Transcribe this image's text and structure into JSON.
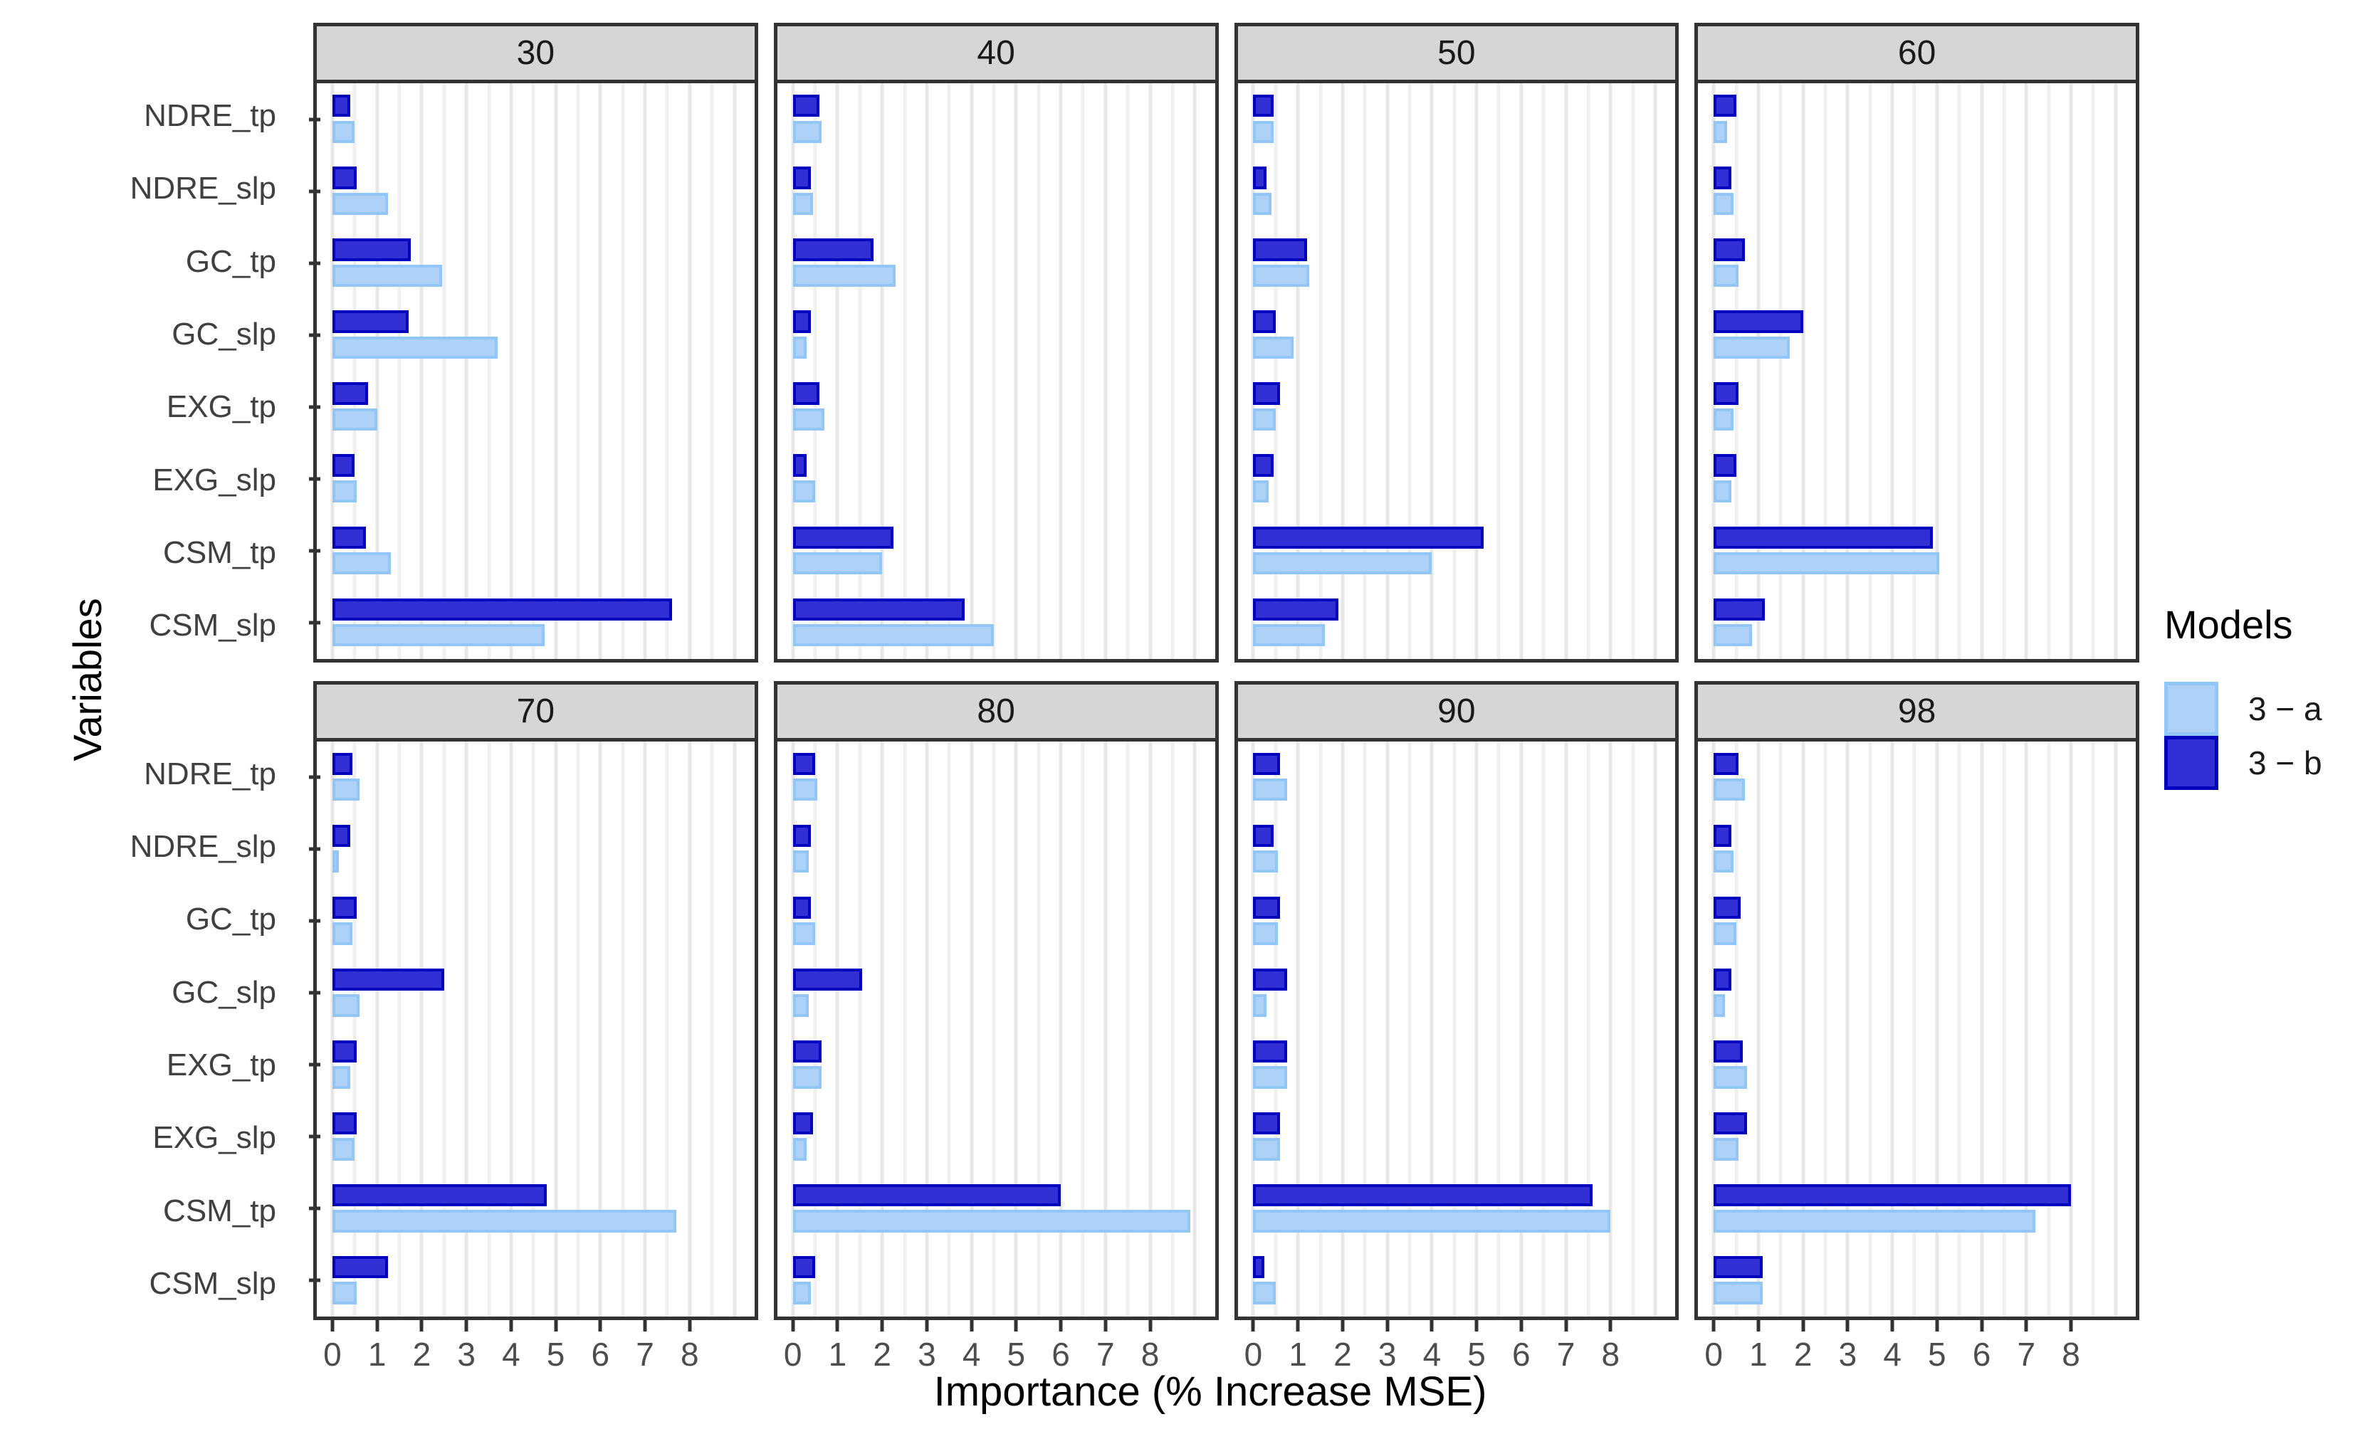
{
  "chart_data": {
    "type": "bar",
    "orientation": "horizontal",
    "title": "",
    "xlabel": "Importance (% Increase MSE)",
    "ylabel": "Variables",
    "categories": [
      "NDRE_tp",
      "NDRE_slp",
      "GC_tp",
      "GC_slp",
      "EXG_tp",
      "EXG_slp",
      "CSM_tp",
      "CSM_slp"
    ],
    "x_ticks": [
      "0",
      "1",
      "2",
      "3",
      "4",
      "5",
      "6",
      "7",
      "8"
    ],
    "xlim": [
      0,
      9.45
    ],
    "grid": "on",
    "legend_position": "right",
    "legend": {
      "title": "Models",
      "entries": [
        {
          "label": "3 − a",
          "fill": "#AED1F8",
          "stroke": "#92C6F6"
        },
        {
          "label": "3 − b",
          "fill": "#3230D4",
          "stroke": "#0202BE"
        }
      ]
    },
    "facets": [
      {
        "label": "30",
        "series": [
          {
            "name": "3 − a",
            "values": [
              0.5,
              1.25,
              2.45,
              3.7,
              1.0,
              0.55,
              1.3,
              4.75
            ]
          },
          {
            "name": "3 − b",
            "values": [
              0.4,
              0.55,
              1.75,
              1.7,
              0.8,
              0.5,
              0.75,
              7.6
            ]
          }
        ]
      },
      {
        "label": "40",
        "series": [
          {
            "name": "3 − a",
            "values": [
              0.65,
              0.45,
              2.3,
              0.3,
              0.7,
              0.5,
              2.0,
              4.5
            ]
          },
          {
            "name": "3 − b",
            "values": [
              0.6,
              0.4,
              1.8,
              0.4,
              0.6,
              0.3,
              2.25,
              3.85
            ]
          }
        ]
      },
      {
        "label": "50",
        "series": [
          {
            "name": "3 − a",
            "values": [
              0.45,
              0.4,
              1.25,
              0.9,
              0.5,
              0.35,
              4.0,
              1.6
            ]
          },
          {
            "name": "3 − b",
            "values": [
              0.45,
              0.3,
              1.2,
              0.5,
              0.6,
              0.45,
              5.15,
              1.9
            ]
          }
        ]
      },
      {
        "label": "60",
        "series": [
          {
            "name": "3 − a",
            "values": [
              0.3,
              0.45,
              0.55,
              1.7,
              0.45,
              0.4,
              5.05,
              0.85
            ]
          },
          {
            "name": "3 − b",
            "values": [
              0.5,
              0.4,
              0.7,
              2.0,
              0.55,
              0.5,
              4.9,
              1.15
            ]
          }
        ]
      },
      {
        "label": "70",
        "series": [
          {
            "name": "3 − a",
            "values": [
              0.6,
              0.15,
              0.45,
              0.6,
              0.4,
              0.5,
              7.7,
              0.55
            ]
          },
          {
            "name": "3 − b",
            "values": [
              0.45,
              0.4,
              0.55,
              2.5,
              0.55,
              0.55,
              4.8,
              1.25
            ]
          }
        ]
      },
      {
        "label": "80",
        "series": [
          {
            "name": "3 − a",
            "values": [
              0.55,
              0.35,
              0.5,
              0.35,
              0.65,
              0.3,
              8.9,
              0.4
            ]
          },
          {
            "name": "3 − b",
            "values": [
              0.5,
              0.4,
              0.4,
              1.55,
              0.65,
              0.45,
              6.0,
              0.5
            ]
          }
        ]
      },
      {
        "label": "90",
        "series": [
          {
            "name": "3 − a",
            "values": [
              0.75,
              0.55,
              0.55,
              0.3,
              0.75,
              0.6,
              8.0,
              0.5
            ]
          },
          {
            "name": "3 − b",
            "values": [
              0.6,
              0.45,
              0.6,
              0.75,
              0.75,
              0.6,
              7.6,
              0.25
            ]
          }
        ]
      },
      {
        "label": "98",
        "series": [
          {
            "name": "3 − a",
            "values": [
              0.7,
              0.45,
              0.5,
              0.25,
              0.75,
              0.55,
              7.2,
              1.1
            ]
          },
          {
            "name": "3 − b",
            "values": [
              0.55,
              0.4,
              0.6,
              0.4,
              0.65,
              0.75,
              8.0,
              1.1
            ]
          }
        ]
      }
    ],
    "colors": {
      "series_a_fill": "#AED1F8",
      "series_a_stroke": "#92C6F6",
      "series_b_fill": "#3230D4",
      "series_b_stroke": "#0202BE",
      "strip_bg": "#D6D6D6",
      "panel_border": "#333333",
      "grid_major": "#E7E7E7",
      "grid_minor": "#F0F0F0",
      "tick_mark": "#333333",
      "tick_text": "#4d4d4d",
      "axis_title": "#000000"
    },
    "layout": {
      "pad_left_units": 0.35,
      "axis_span_units": 9.8,
      "minor_step": 0.5
    }
  }
}
